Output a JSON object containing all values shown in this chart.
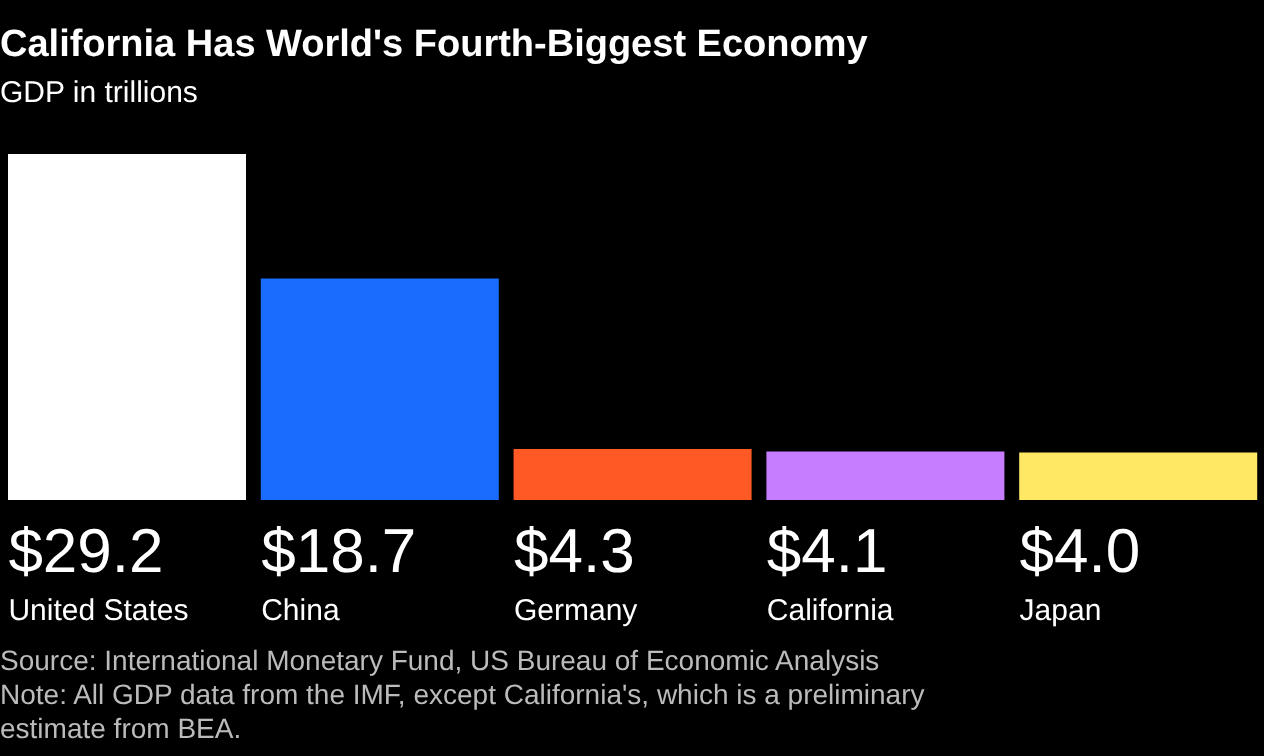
{
  "chart_data": {
    "type": "bar",
    "title": "California Has World's Fourth-Biggest Economy",
    "subtitle": "GDP in trillions",
    "categories": [
      "United States",
      "China",
      "Germany",
      "California",
      "Japan"
    ],
    "values": [
      29.2,
      18.7,
      4.3,
      4.1,
      4.0
    ],
    "colors": [
      "#ffffff",
      "#1a6cff",
      "#ff5a26",
      "#c77dff",
      "#ffe863"
    ],
    "value_labels": [
      "$29.2",
      "$18.7",
      "$4.3",
      "$4.1",
      "$4.0"
    ],
    "annotations": [
      "Source: International Monetary Fund, US Bureau of Economic Analysis",
      "Note: All GDP data from the IMF, except California's, which is a preliminary estimate from BEA."
    ]
  }
}
